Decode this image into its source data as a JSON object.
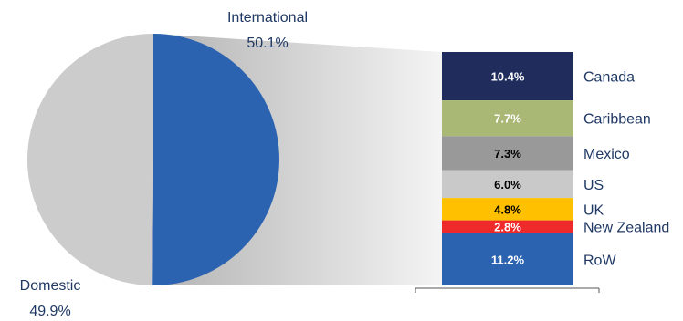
{
  "chart_data": {
    "type": "bar-of-pie",
    "pie": {
      "slices": [
        {
          "label": "International",
          "value_label": "50.1%",
          "value": 50.1,
          "color": "#2b63b1"
        },
        {
          "label": "Domestic",
          "value_label": "49.9%",
          "value": 49.9,
          "color": "#cccccc"
        }
      ]
    },
    "bar": {
      "breakdown_of": "International",
      "segments": [
        {
          "label": "Canada",
          "value_label": "10.4%",
          "value": 10.4,
          "color": "#1f2c5c",
          "text_color": "#ffffff"
        },
        {
          "label": "Caribbean",
          "value_label": "7.7%",
          "value": 7.7,
          "color": "#a9b874",
          "text_color": "#ffffff"
        },
        {
          "label": "Mexico",
          "value_label": "7.3%",
          "value": 7.3,
          "color": "#999999",
          "text_color": "#000000"
        },
        {
          "label": "US",
          "value_label": "6.0%",
          "value": 6.0,
          "color": "#c9c9c9",
          "text_color": "#000000"
        },
        {
          "label": "UK",
          "value_label": "4.8%",
          "value": 4.8,
          "color": "#ffc000",
          "text_color": "#000000"
        },
        {
          "label": "New Zealand",
          "value_label": "2.8%",
          "value": 2.8,
          "color": "#ee2a2a",
          "text_color": "#ffffff"
        },
        {
          "label": "RoW",
          "value_label": "11.2%",
          "value": 11.2,
          "color": "#2b63b1",
          "text_color": "#ffffff"
        }
      ]
    }
  }
}
